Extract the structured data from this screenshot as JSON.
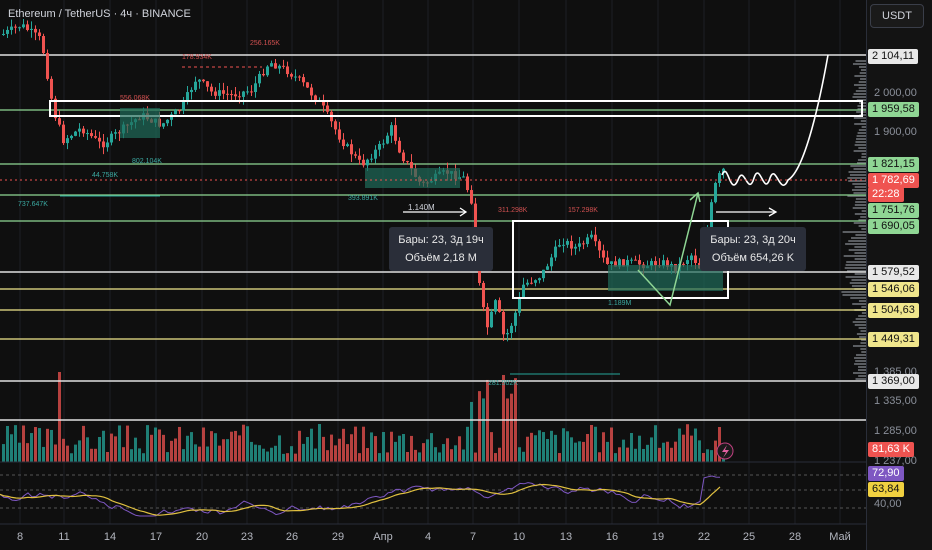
{
  "header": {
    "title": "Ethereum / TetherUS · 4ч · BINANCE",
    "currency": "USDT"
  },
  "price_axis": {
    "ticks": [
      "2 000,00",
      "1 900,00",
      "1 385,00",
      "1 335,00",
      "1 285,00",
      "1 237,00",
      "40,00"
    ],
    "labels": [
      {
        "text": "2 104,11",
        "type": "white"
      },
      {
        "text": "1 959,58",
        "type": "green"
      },
      {
        "text": "1 821,15",
        "type": "green"
      },
      {
        "text": "1 782,69",
        "type": "red"
      },
      {
        "text": "22:28",
        "type": "red"
      },
      {
        "text": "1 751,76",
        "type": "green"
      },
      {
        "text": "1 690,05",
        "type": "green"
      },
      {
        "text": "1 579,52",
        "type": "white"
      },
      {
        "text": "1 546,06",
        "type": "yellow"
      },
      {
        "text": "1 504,63",
        "type": "yellow"
      },
      {
        "text": "1 449,31",
        "type": "yellow"
      },
      {
        "text": "1 369,00",
        "type": "white"
      },
      {
        "text": "81,63 K",
        "type": "red"
      },
      {
        "text": "72,90",
        "type": "purple"
      },
      {
        "text": "63,84",
        "type": "yellowfill"
      }
    ]
  },
  "time_axis": [
    "8",
    "11",
    "14",
    "17",
    "20",
    "23",
    "26",
    "29",
    "Апр",
    "4",
    "7",
    "10",
    "13",
    "16",
    "19",
    "22",
    "25",
    "28",
    "Май"
  ],
  "tooltips": [
    {
      "line1": "Бары: 23, 3д 19ч",
      "line2": "Объём 2,18 M"
    },
    {
      "line1": "Бары: 23, 3д 20ч",
      "line2": "Объём 654,26 K"
    }
  ],
  "volume_labels": [
    "256.165K",
    "178.934K",
    "556.068K",
    "802.104K",
    "44.758K",
    "737.647K",
    "393.891K",
    "1.140M",
    "311.298K",
    "157.298K",
    "1.189M",
    "281.902K"
  ],
  "colors": {
    "up": "#26a69a",
    "down": "#ef5350",
    "green_line": "#8fd694",
    "yellow_line": "#f0e68c",
    "white_line": "#e0e0e0",
    "rsi": "#7e57c2",
    "rsi_ma": "#e0c040"
  },
  "indicator_icon": "lightning-icon"
}
